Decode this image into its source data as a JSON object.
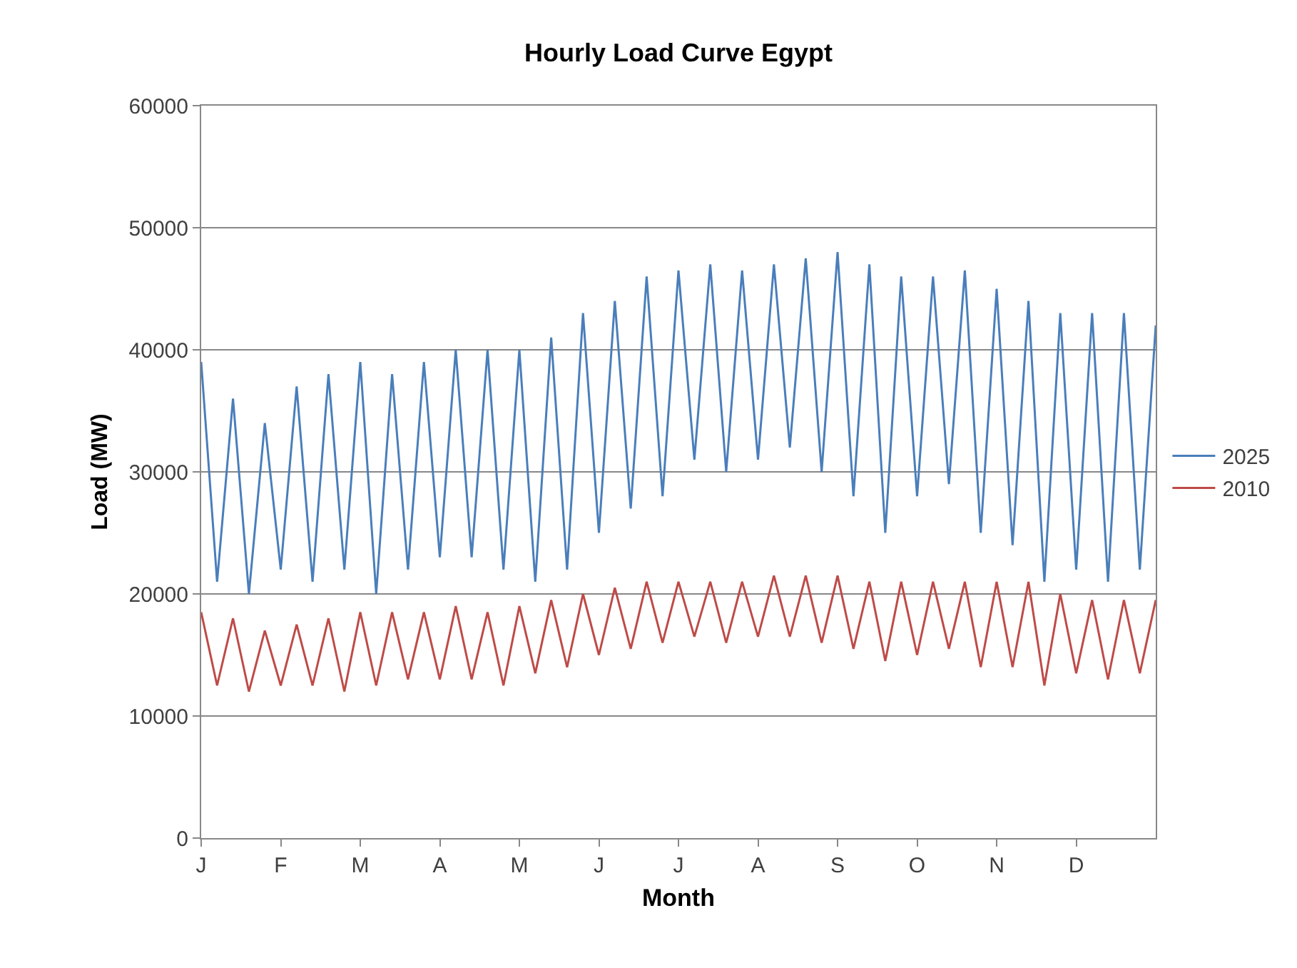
{
  "chart_data": {
    "type": "line",
    "title": "Hourly Load Curve Egypt",
    "xlabel": "Month",
    "ylabel": "Load (MW)",
    "categories": [
      "J",
      null,
      null,
      null,
      null,
      "F",
      null,
      null,
      null,
      null,
      "M",
      null,
      null,
      null,
      null,
      "A",
      null,
      null,
      null,
      null,
      "M",
      null,
      null,
      null,
      null,
      "J",
      null,
      null,
      null,
      null,
      "J",
      null,
      null,
      null,
      null,
      "A",
      null,
      null,
      null,
      null,
      "S",
      null,
      null,
      null,
      null,
      "O",
      null,
      null,
      null,
      null,
      "N",
      null,
      null,
      null,
      null,
      "D",
      null,
      null,
      null,
      null,
      null
    ],
    "series": [
      {
        "name": "2025",
        "color": "#4a7ebb",
        "values": [
          39000,
          21000,
          36000,
          20000,
          34000,
          22000,
          37000,
          21000,
          38000,
          22000,
          39000,
          20000,
          38000,
          22000,
          39000,
          23000,
          40000,
          23000,
          40000,
          22000,
          40000,
          21000,
          41000,
          22000,
          43000,
          25000,
          44000,
          27000,
          46000,
          28000,
          46500,
          31000,
          47000,
          30000,
          46500,
          31000,
          47000,
          32000,
          47500,
          30000,
          48000,
          28000,
          47000,
          25000,
          46000,
          28000,
          46000,
          29000,
          46500,
          25000,
          45000,
          24000,
          44000,
          21000,
          43000,
          22000,
          43000,
          21000,
          43000,
          22000,
          42000
        ]
      },
      {
        "name": "2010",
        "color": "#be4b48",
        "values": [
          18500,
          12500,
          18000,
          12000,
          17000,
          12500,
          17500,
          12500,
          18000,
          12000,
          18500,
          12500,
          18500,
          13000,
          18500,
          13000,
          19000,
          13000,
          18500,
          12500,
          19000,
          13500,
          19500,
          14000,
          20000,
          15000,
          20500,
          15500,
          21000,
          16000,
          21000,
          16500,
          21000,
          16000,
          21000,
          16500,
          21500,
          16500,
          21500,
          16000,
          21500,
          15500,
          21000,
          14500,
          21000,
          15000,
          21000,
          15500,
          21000,
          14000,
          21000,
          14000,
          21000,
          12500,
          20000,
          13500,
          19500,
          13000,
          19500,
          13500,
          19500
        ]
      }
    ],
    "ylim": [
      0,
      60000
    ],
    "yticks": [
      0,
      10000,
      20000,
      30000,
      40000,
      50000,
      60000
    ],
    "grid": "y",
    "legend": "right",
    "marker": "none",
    "line_style": "solid"
  }
}
